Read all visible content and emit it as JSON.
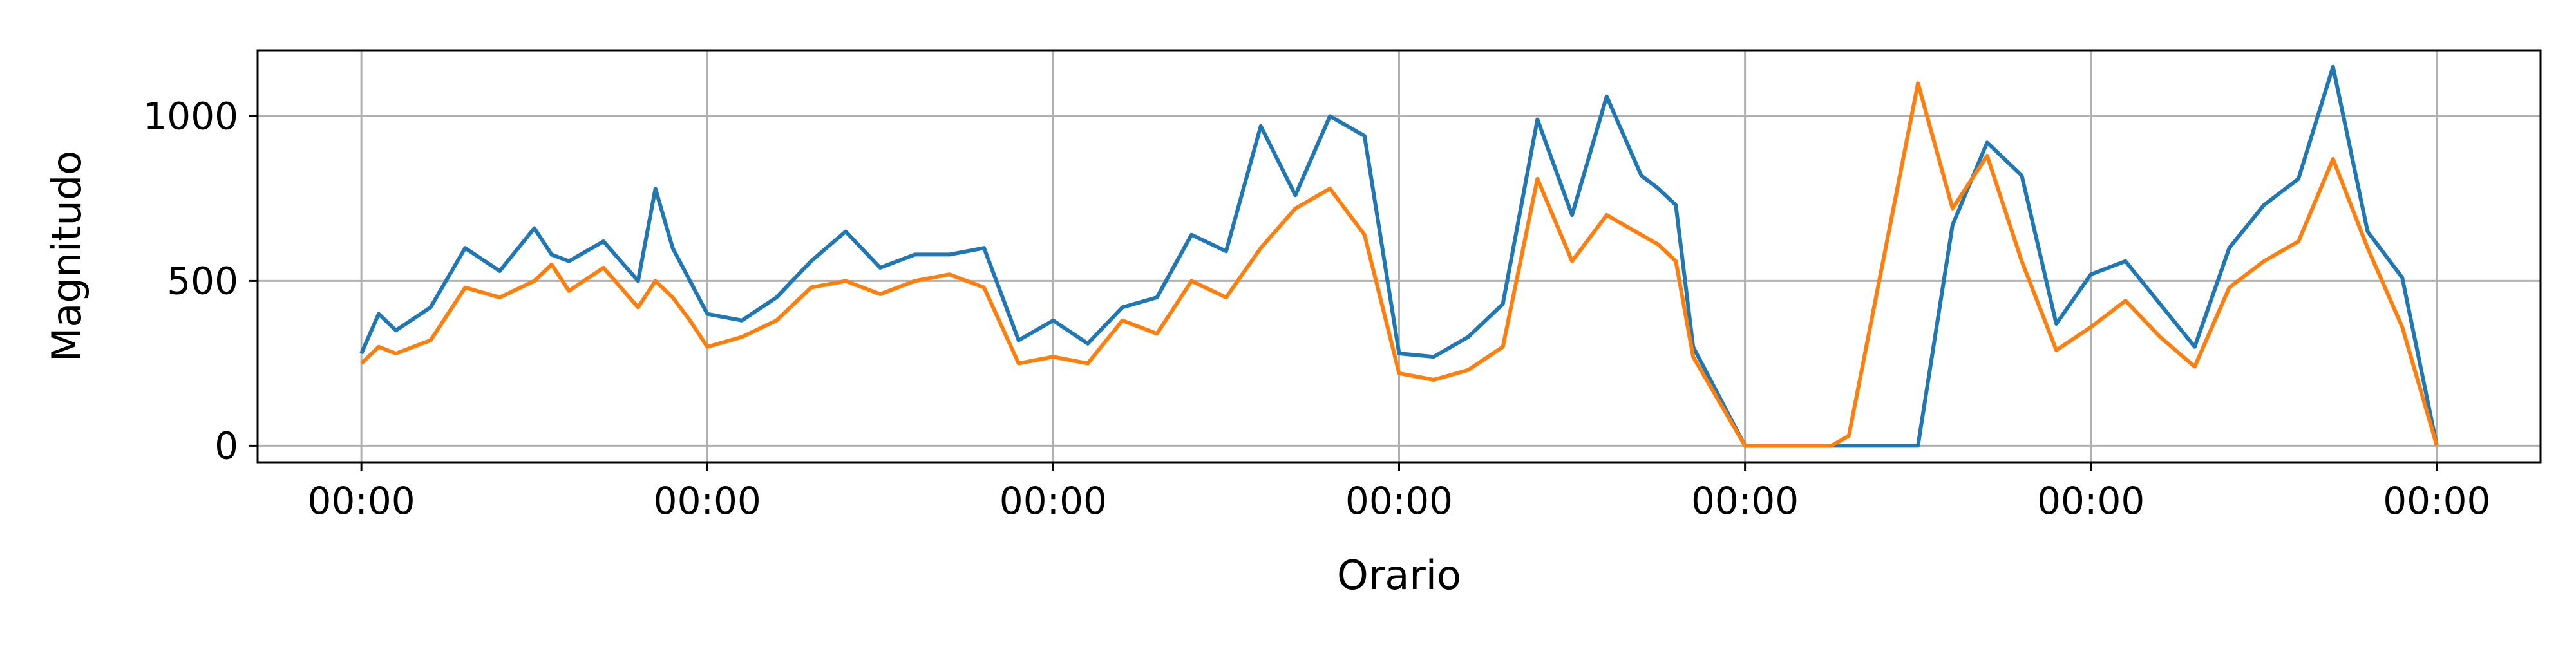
{
  "chart_data": {
    "type": "line",
    "title": "",
    "xlabel": "Orario",
    "ylabel": "Magnitudo",
    "xlim": [
      -0.3,
      6.3
    ],
    "ylim": [
      -50,
      1200
    ],
    "x_ticks": [
      0,
      1,
      2,
      3,
      4,
      5,
      6
    ],
    "x_tick_labels": [
      "00:00",
      "00:00",
      "00:00",
      "00:00",
      "00:00",
      "00:00",
      "00:00"
    ],
    "y_ticks": [
      0,
      500,
      1000
    ],
    "y_tick_labels": [
      "0",
      "500",
      "1000"
    ],
    "grid": true,
    "legend": false,
    "colors": {
      "series_1": "#1f77b4",
      "series_2": "#ff7f0e",
      "grid": "#b0b0b0",
      "axes": "#000000"
    },
    "series": [
      {
        "color": "#1f77b4",
        "x": [
          0.0,
          0.05,
          0.1,
          0.2,
          0.3,
          0.4,
          0.5,
          0.55,
          0.6,
          0.7,
          0.8,
          0.85,
          0.9,
          0.95,
          1.0,
          1.1,
          1.2,
          1.3,
          1.4,
          1.5,
          1.6,
          1.7,
          1.8,
          1.9,
          2.0,
          2.1,
          2.2,
          2.3,
          2.4,
          2.5,
          2.6,
          2.7,
          2.8,
          2.9,
          3.0,
          3.1,
          3.2,
          3.3,
          3.4,
          3.5,
          3.6,
          3.7,
          3.75,
          3.8,
          3.85,
          4.0,
          4.5,
          4.6,
          4.7,
          4.8,
          4.9,
          5.0,
          5.1,
          5.2,
          5.3,
          5.4,
          5.5,
          5.6,
          5.7,
          5.8,
          5.9,
          6.0
        ],
        "y": [
          280,
          400,
          350,
          420,
          600,
          530,
          660,
          580,
          560,
          620,
          500,
          780,
          600,
          500,
          400,
          380,
          450,
          560,
          650,
          540,
          580,
          580,
          600,
          320,
          380,
          310,
          420,
          450,
          640,
          590,
          970,
          760,
          1000,
          940,
          280,
          270,
          330,
          430,
          990,
          700,
          1060,
          820,
          780,
          730,
          300,
          0,
          0,
          670,
          920,
          820,
          370,
          520,
          560,
          430,
          300,
          600,
          730,
          810,
          1150,
          650,
          510,
          0
        ]
      },
      {
        "color": "#ff7f0e",
        "x": [
          0.0,
          0.05,
          0.1,
          0.2,
          0.3,
          0.4,
          0.5,
          0.55,
          0.6,
          0.7,
          0.8,
          0.85,
          0.9,
          0.95,
          1.0,
          1.1,
          1.2,
          1.3,
          1.4,
          1.5,
          1.6,
          1.7,
          1.8,
          1.9,
          2.0,
          2.1,
          2.2,
          2.3,
          2.4,
          2.5,
          2.6,
          2.7,
          2.8,
          2.9,
          3.0,
          3.1,
          3.2,
          3.3,
          3.4,
          3.5,
          3.6,
          3.7,
          3.75,
          3.8,
          3.85,
          4.0,
          4.25,
          4.3,
          4.5,
          4.6,
          4.7,
          4.8,
          4.9,
          5.0,
          5.1,
          5.2,
          5.3,
          5.4,
          5.5,
          5.6,
          5.7,
          5.8,
          5.9,
          6.0
        ],
        "y": [
          250,
          300,
          280,
          320,
          480,
          450,
          500,
          550,
          470,
          540,
          420,
          500,
          450,
          380,
          300,
          330,
          380,
          480,
          500,
          460,
          500,
          520,
          480,
          250,
          270,
          250,
          380,
          340,
          500,
          450,
          600,
          720,
          780,
          640,
          220,
          200,
          230,
          300,
          810,
          560,
          700,
          640,
          610,
          560,
          270,
          0,
          0,
          30,
          1100,
          720,
          880,
          560,
          290,
          360,
          440,
          330,
          240,
          480,
          560,
          620,
          870,
          600,
          360,
          0
        ]
      }
    ]
  }
}
